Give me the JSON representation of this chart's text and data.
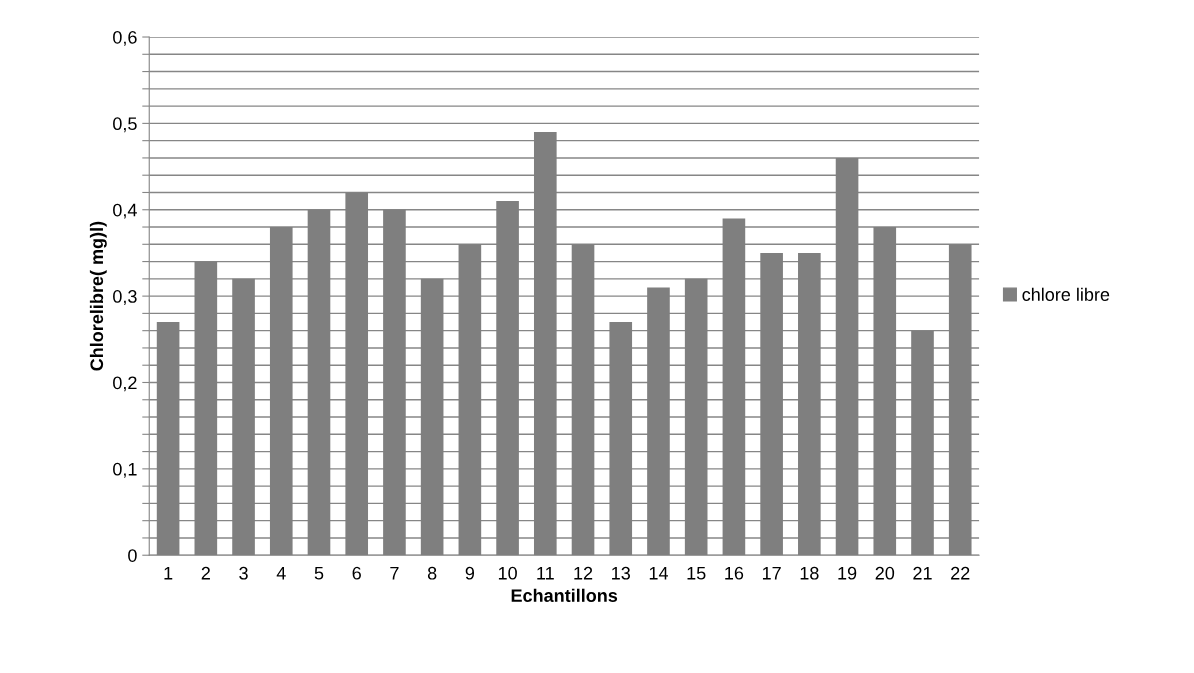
{
  "chart_data": {
    "type": "bar",
    "xlabel": "Echantillons",
    "ylabel": "Chlorelibre( mg)l)",
    "categories": [
      "1",
      "2",
      "3",
      "4",
      "5",
      "6",
      "7",
      "8",
      "9",
      "10",
      "11",
      "12",
      "13",
      "14",
      "15",
      "16",
      "17",
      "18",
      "19",
      "20",
      "21",
      "22"
    ],
    "series": [
      {
        "name": "chlore libre",
        "color": "#7f7f7f",
        "values": [
          0.27,
          0.34,
          0.32,
          0.38,
          0.4,
          0.42,
          0.4,
          0.32,
          0.36,
          0.41,
          0.49,
          0.36,
          0.27,
          0.31,
          0.32,
          0.39,
          0.35,
          0.35,
          0.46,
          0.38,
          0.26,
          0.36
        ]
      }
    ],
    "ylim": [
      0,
      0.6
    ],
    "yticks": [
      0,
      {
        "value": 0.02,
        "label": null
      },
      {
        "value": 0.04,
        "label": null
      },
      {
        "value": 0.06,
        "label": null
      },
      {
        "value": 0.08,
        "label": null
      },
      {
        "value": 0.1,
        "label": "0,1"
      },
      {
        "value": 0.12,
        "label": null
      },
      {
        "value": 0.14,
        "label": null
      },
      {
        "value": 0.16,
        "label": null
      },
      {
        "value": 0.18,
        "label": null
      },
      {
        "value": 0.2,
        "label": "0,2"
      },
      {
        "value": 0.22,
        "label": null
      },
      {
        "value": 0.24,
        "label": null
      },
      {
        "value": 0.26,
        "label": null
      },
      {
        "value": 0.28,
        "label": null
      },
      {
        "value": 0.3,
        "label": "0,3"
      },
      {
        "value": 0.32,
        "label": null
      },
      {
        "value": 0.34,
        "label": null
      },
      {
        "value": 0.36,
        "label": null
      },
      {
        "value": 0.38,
        "label": null
      },
      {
        "value": 0.4,
        "label": "0,4"
      },
      {
        "value": 0.42,
        "label": null
      },
      {
        "value": 0.44,
        "label": null
      },
      {
        "value": 0.46,
        "label": null
      },
      {
        "value": 0.48,
        "label": null
      },
      {
        "value": 0.5,
        "label": "0,5"
      },
      {
        "value": 0.52,
        "label": null
      },
      {
        "value": 0.54,
        "label": null
      },
      {
        "value": 0.56,
        "label": null
      },
      {
        "value": 0.58,
        "label": null
      },
      {
        "value": 0.6,
        "label": "0,6"
      }
    ],
    "grid": "y",
    "legend": "right"
  }
}
